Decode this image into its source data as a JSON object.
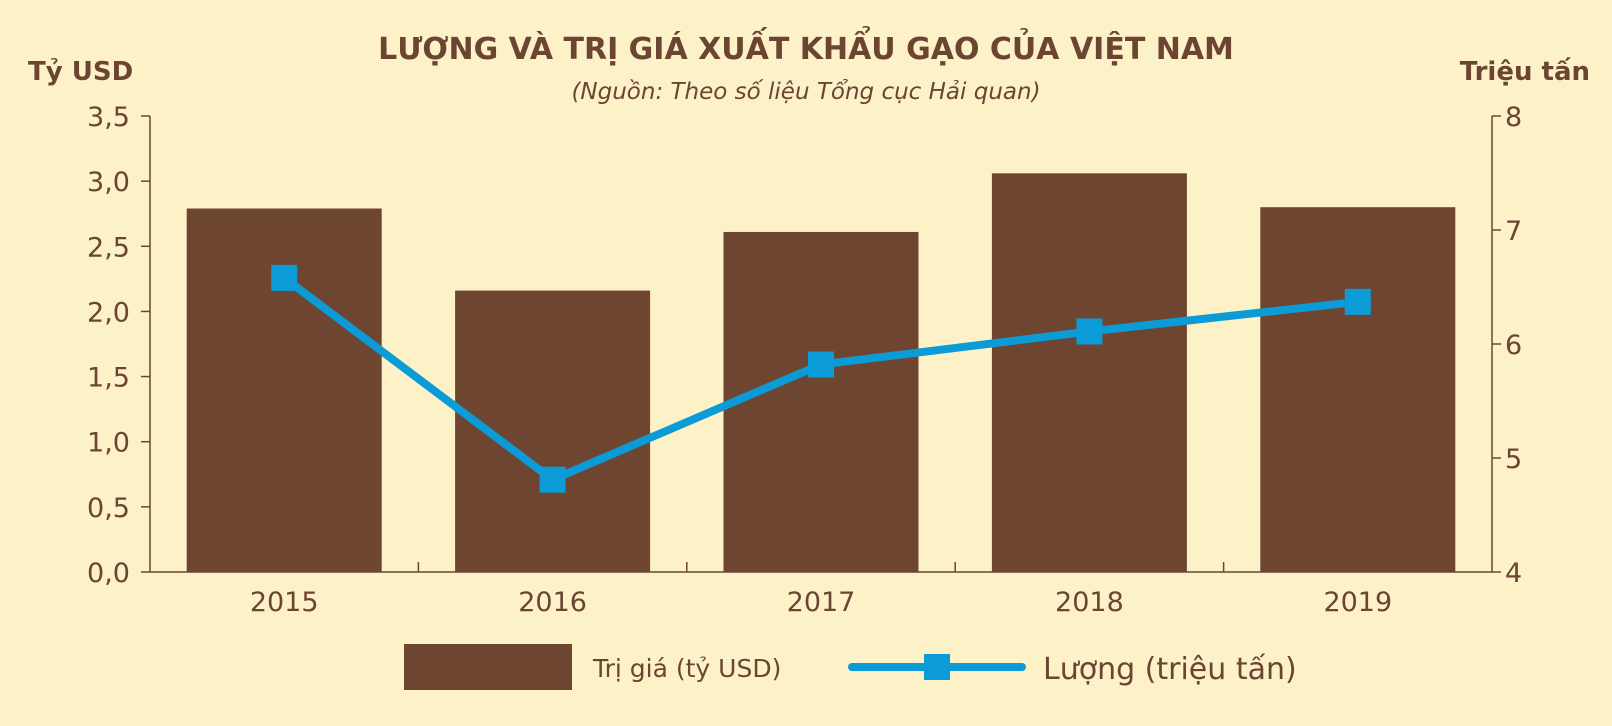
{
  "colors": {
    "background": "#fdf1c8",
    "bar": "#6e4531",
    "line": "#0b9bd6",
    "text": "#6b4532",
    "axis": "#6b4532"
  },
  "chart_data": {
    "type": "bar",
    "title": "LƯỢNG VÀ TRỊ GIÁ XUẤT KHẨU GẠO CỦA VIỆT NAM",
    "subtitle": "(Nguồn: Theo số liệu Tổng cục Hải quan)",
    "y_left_label": "Tỷ USD",
    "y_right_label": "Triệu tấn",
    "categories": [
      "2015",
      "2016",
      "2017",
      "2018",
      "2019"
    ],
    "y_left": {
      "min": 0,
      "max": 3.5,
      "ticks": [
        "0,0",
        "0,5",
        "1,0",
        "1,5",
        "2,0",
        "2,5",
        "3,0",
        "3,5"
      ]
    },
    "y_right": {
      "min": 4,
      "max": 8,
      "ticks": [
        "4",
        "5",
        "6",
        "7",
        "8"
      ]
    },
    "grid": false,
    "legend_position": "bottom",
    "series": [
      {
        "name": "Trị giá (tỷ USD)",
        "type": "bar",
        "axis": "left",
        "values": [
          2.79,
          2.16,
          2.61,
          3.06,
          2.8
        ]
      },
      {
        "name": "Lượng (triệu tấn)",
        "type": "line",
        "axis": "right",
        "marker": "square",
        "values": [
          6.58,
          4.81,
          5.82,
          6.11,
          6.37
        ]
      }
    ]
  }
}
